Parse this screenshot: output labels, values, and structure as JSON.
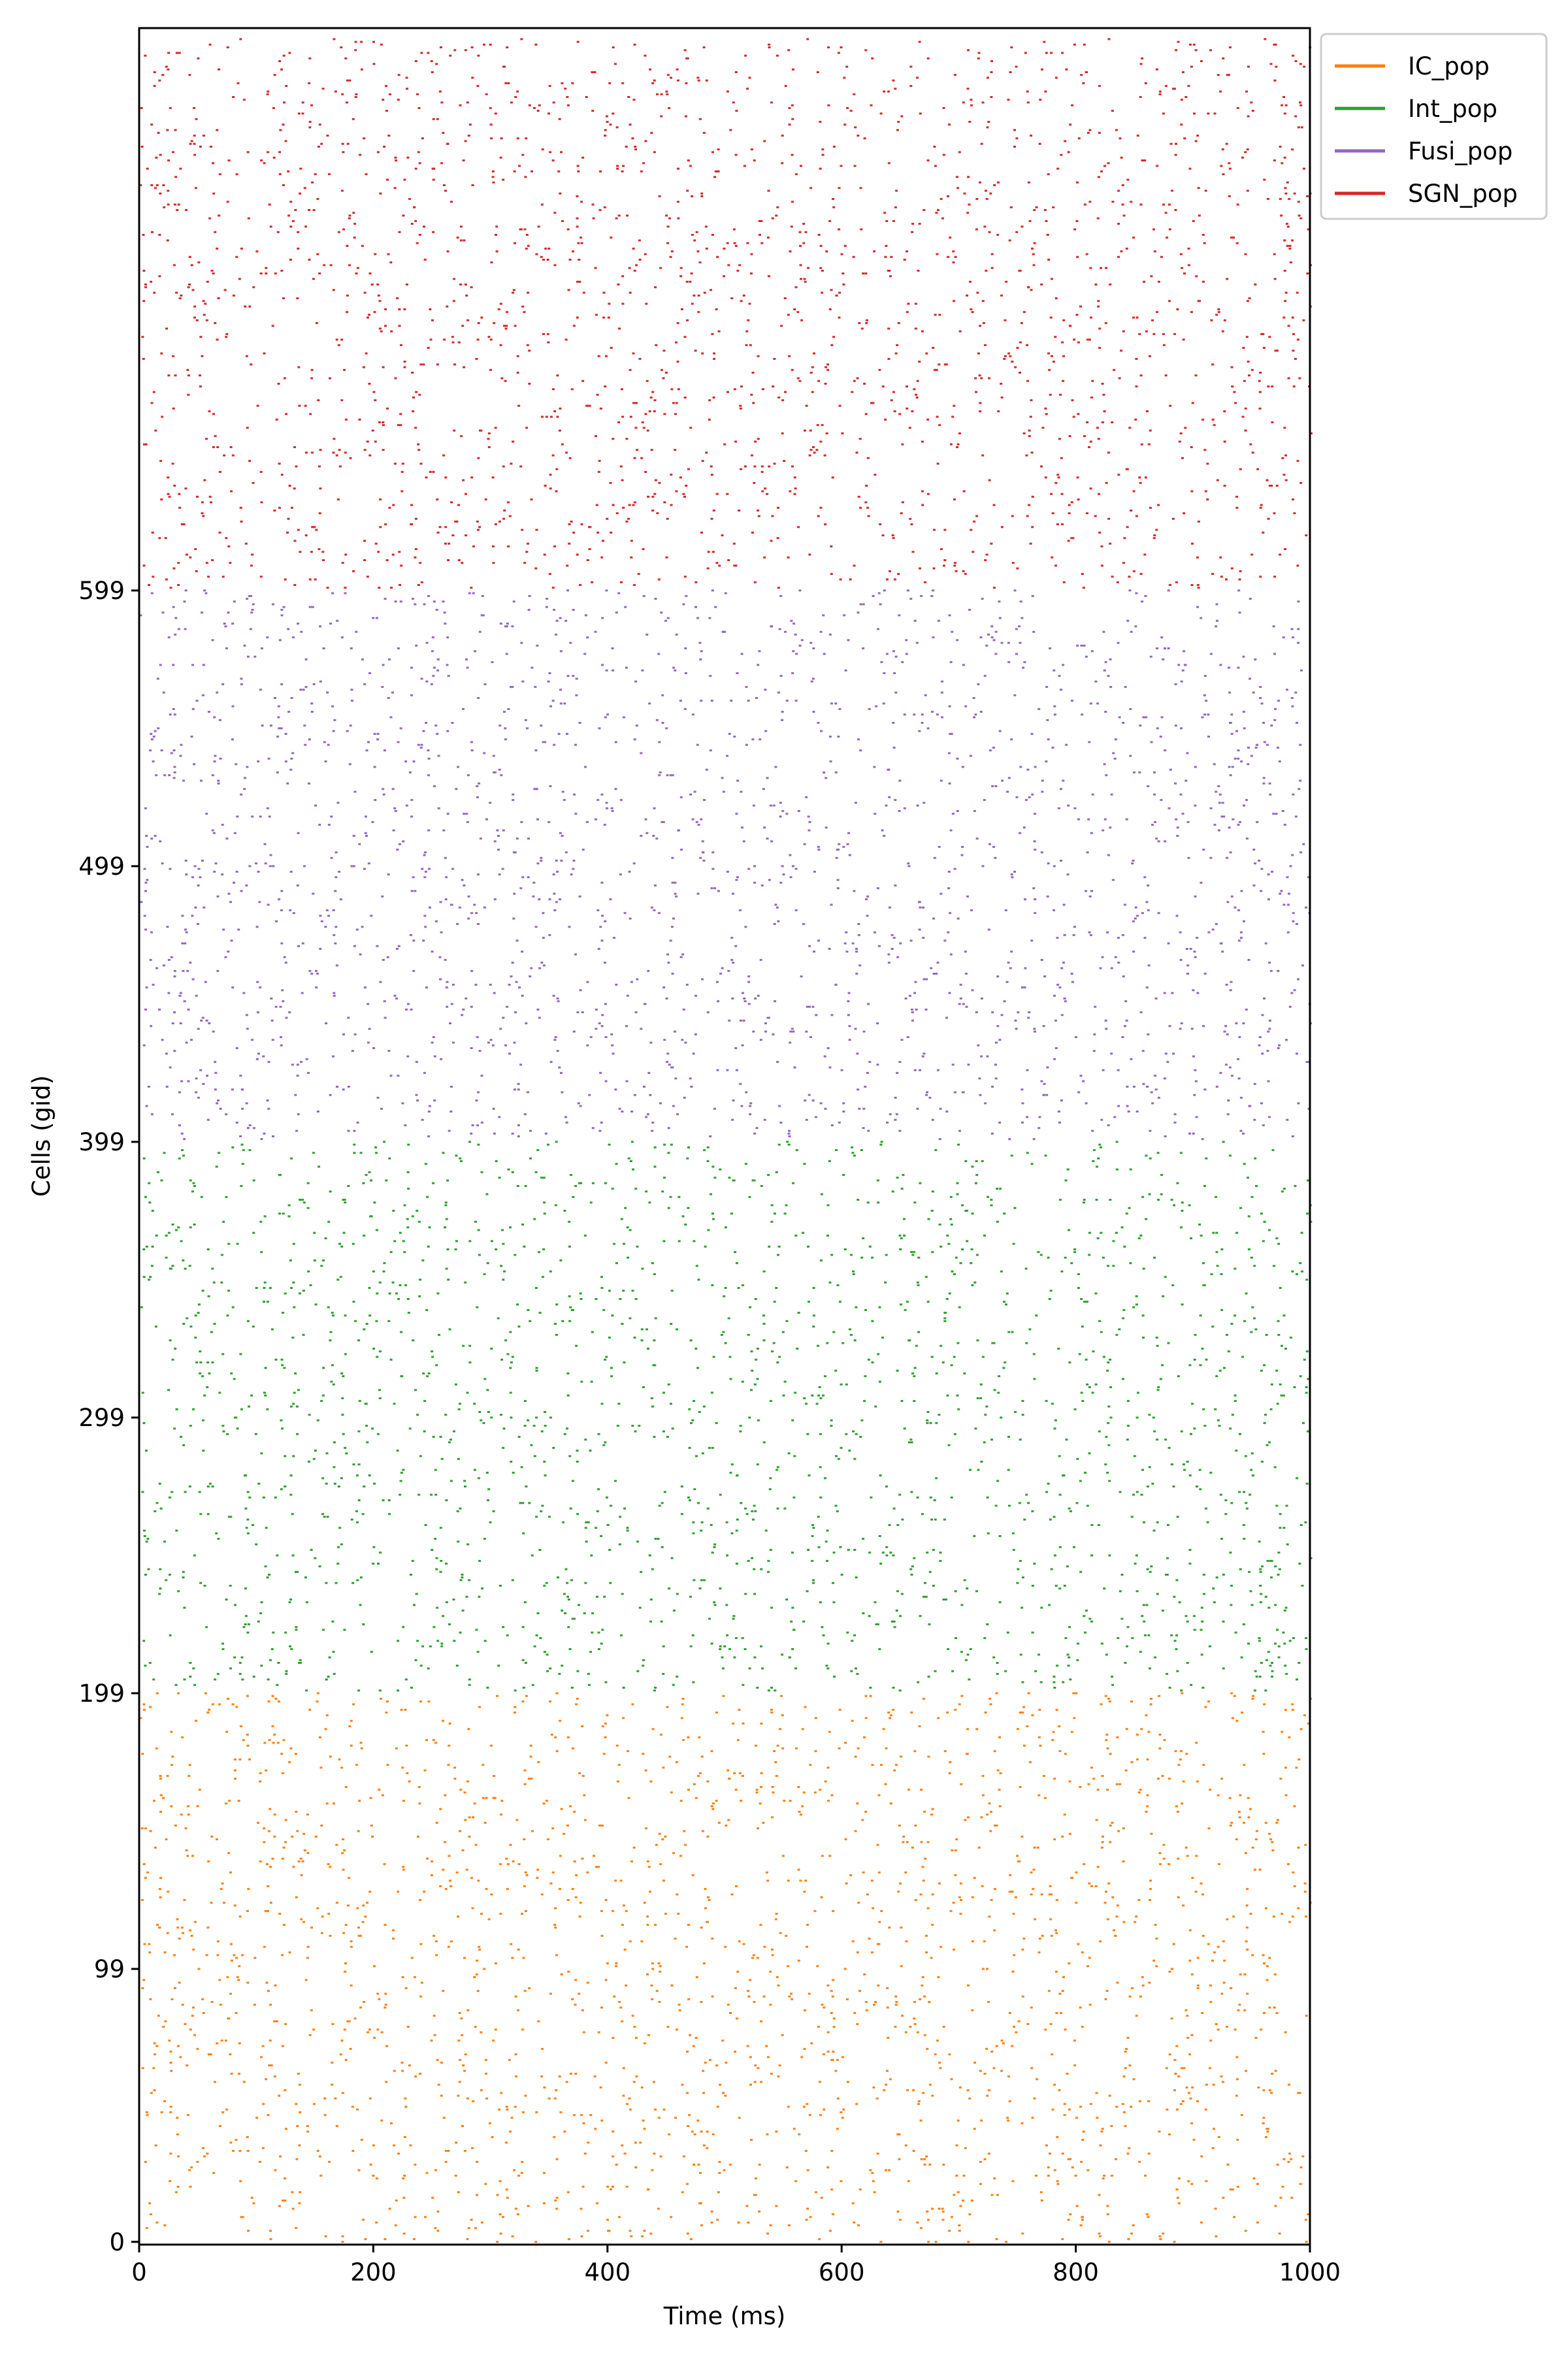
{
  "chart_data": {
    "type": "scatter",
    "subtype": "raster",
    "title": "",
    "xlabel": "Time (ms)",
    "ylabel": "Cells (gid)",
    "xlim": [
      0,
      1000
    ],
    "ylim": [
      -1,
      803
    ],
    "xticks": [
      0,
      200,
      400,
      600,
      800,
      1000
    ],
    "xtick_labels": [
      "0",
      "200",
      "400",
      "600",
      "800",
      "1000"
    ],
    "yticks": [
      0,
      99,
      199,
      299,
      399,
      499,
      599
    ],
    "ytick_labels": [
      "0",
      "99",
      "199",
      "299",
      "399",
      "499",
      "599"
    ],
    "grid": false,
    "legend_position": "outside-top-right",
    "series": [
      {
        "name": "IC_pop",
        "color": "#ff7f0e",
        "gid_range": [
          0,
          199
        ],
        "spike_time_range": [
          0,
          1000
        ],
        "spikes_per_cell_approx": 10
      },
      {
        "name": "Int_pop",
        "color": "#2ca02c",
        "gid_range": [
          200,
          399
        ],
        "spike_time_range": [
          0,
          1000
        ],
        "spikes_per_cell_approx": 10
      },
      {
        "name": "Fusi_pop",
        "color": "#9467bd",
        "gid_range": [
          400,
          599
        ],
        "spike_time_range": [
          0,
          1000
        ],
        "spikes_per_cell_approx": 10
      },
      {
        "name": "SGN_pop",
        "color": "#d62728",
        "gid_range": [
          600,
          799
        ],
        "spike_time_range": [
          0,
          1000
        ],
        "spikes_per_cell_approx": 10
      }
    ]
  }
}
